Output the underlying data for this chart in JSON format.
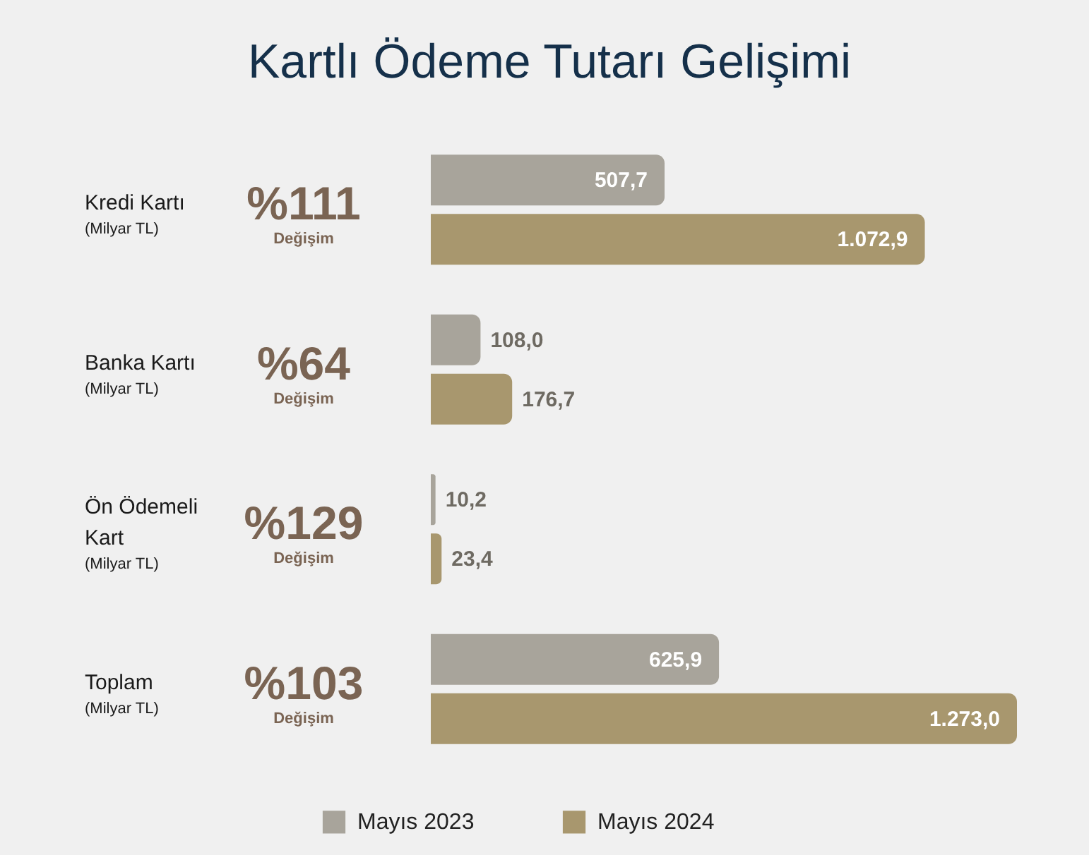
{
  "chart_data": {
    "type": "bar",
    "orientation": "horizontal",
    "title": "Kartlı Ödeme Tutarı Gelişimi",
    "categories": [
      "Kredi Kartı\n(Milyar TL)",
      "Banka Kartı\n(Milyar TL)",
      "Ön Ödemeli Kart\n(Milyar TL)",
      "Toplam\n(Milyar TL)"
    ],
    "series": [
      {
        "name": "Mayıs 2023",
        "color": "#a8a49b",
        "values": [
          507.7,
          108.0,
          10.2,
          625.9
        ],
        "value_labels": [
          "507,7",
          "108,0",
          "10,2",
          "625,9"
        ]
      },
      {
        "name": "Mayıs 2024",
        "color": "#a8976e",
        "values": [
          1072.9,
          176.7,
          23.4,
          1273.0
        ],
        "value_labels": [
          "1.072,9",
          "176,7",
          "23,4",
          "1.273,0"
        ]
      }
    ],
    "annotations": [
      "%111\nDeğişim",
      "%64\nDeğişim",
      "%129\nDeğişim",
      "%103\nDeğişim"
    ],
    "legend": "bottom",
    "tick_labels": "y"
  }
}
